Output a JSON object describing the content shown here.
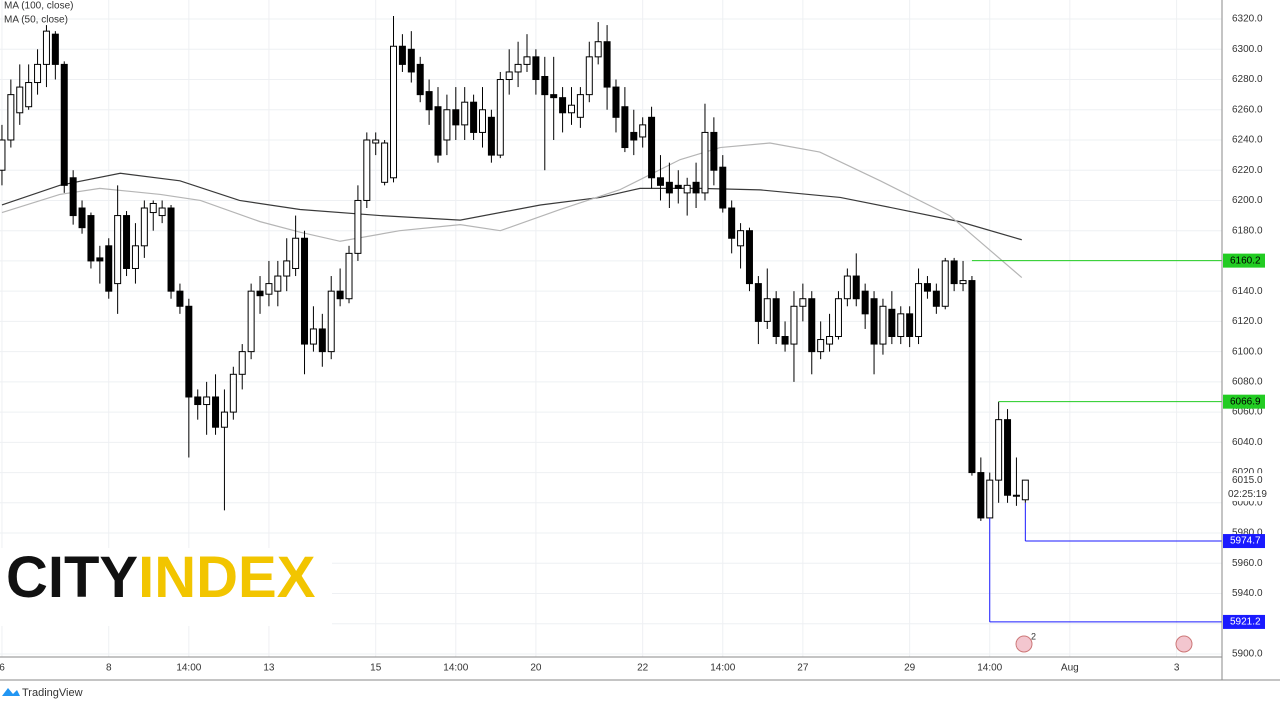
{
  "chart_data": {
    "type": "candlestick",
    "legend": [
      "MA (100, close)",
      "MA (50, close)"
    ],
    "xlim": [
      -0.22,
      137.1
    ],
    "ylim": [
      5898,
      6332.6
    ],
    "grid": true,
    "xticks": [
      {
        "value": 0,
        "label": "6"
      },
      {
        "value": 12,
        "label": "8"
      },
      {
        "value": 21,
        "label": "14:00"
      },
      {
        "value": 30,
        "label": "13"
      },
      {
        "value": 42,
        "label": "15"
      },
      {
        "value": 51,
        "label": "14:00"
      },
      {
        "value": 60,
        "label": "20"
      },
      {
        "value": 72,
        "label": "22"
      },
      {
        "value": 81,
        "label": "14:00"
      },
      {
        "value": 90,
        "label": "27"
      },
      {
        "value": 102,
        "label": "29"
      },
      {
        "value": 111,
        "label": "14:00"
      },
      {
        "value": 120,
        "label": "Aug"
      },
      {
        "value": 132,
        "label": "3"
      }
    ],
    "yticks": [
      {
        "value": 5900,
        "label": "5900.0"
      },
      {
        "value": 5920,
        "label": "5920.0"
      },
      {
        "value": 5940,
        "label": "5940.0"
      },
      {
        "value": 5960,
        "label": "5960.0"
      },
      {
        "value": 5980,
        "label": "5980.0"
      },
      {
        "value": 6000,
        "label": "6000.0"
      },
      {
        "value": 6020,
        "label": "6020.0"
      },
      {
        "value": 6040,
        "label": "6040.0"
      },
      {
        "value": 6060,
        "label": "6060.0"
      },
      {
        "value": 6080,
        "label": "6080.0"
      },
      {
        "value": 6100,
        "label": "6100.0"
      },
      {
        "value": 6120,
        "label": "6120.0"
      },
      {
        "value": 6140,
        "label": "6140.0"
      },
      {
        "value": 6160,
        "label": "6160.0"
      },
      {
        "value": 6180,
        "label": "6180.0"
      },
      {
        "value": 6200,
        "label": "6200.0"
      },
      {
        "value": 6220,
        "label": "6220.0"
      },
      {
        "value": 6240,
        "label": "6240.0"
      },
      {
        "value": 6260,
        "label": "6260.0"
      },
      {
        "value": 6280,
        "label": "6280.0"
      },
      {
        "value": 6300,
        "label": "6300.0"
      },
      {
        "value": 6320,
        "label": "6320.0"
      }
    ],
    "up_color": "#ffffff",
    "down_color": "#000000",
    "open": [
      6220,
      6240,
      6258,
      6262,
      6278,
      6290,
      6310,
      6290,
      6215,
      6195,
      6190,
      6162,
      6170,
      6145,
      6190,
      6155,
      6170,
      6192,
      6190,
      6195,
      6140,
      6130,
      6070,
      6065,
      6070,
      6050,
      6060,
      6085,
      6100,
      6140,
      6138,
      6140,
      6150,
      6155,
      6175,
      6105,
      6115,
      6100,
      6140,
      6135,
      6165,
      6200,
      6238,
      6212,
      6215,
      6302,
      6300,
      6290,
      6272,
      6262,
      6240,
      6260,
      6250,
      6265,
      6245,
      6255,
      6230,
      6280,
      6285,
      6290,
      6295,
      6282,
      6270,
      6268,
      6258,
      6255,
      6270,
      6295,
      6305,
      6275,
      6262,
      6245,
      6242,
      6255,
      6215,
      6212,
      6210,
      6205,
      6212,
      6205,
      6245,
      6222,
      6195,
      6170,
      6180,
      6145,
      6120,
      6135,
      6110,
      6105,
      6130,
      6135,
      6100,
      6105,
      6110,
      6135,
      6150,
      6140,
      6135,
      6105,
      6128,
      6110,
      6125,
      6110,
      6145,
      6140,
      6130,
      6160,
      6145,
      6147,
      6020,
      5990,
      6015,
      6055,
      6005,
      6002
    ],
    "high": [
      6250,
      6280,
      6290,
      6290,
      6300,
      6316,
      6312,
      6292,
      6220,
      6200,
      6192,
      6170,
      6175,
      6210,
      6193,
      6185,
      6200,
      6200,
      6200,
      6197,
      6145,
      6135,
      6075,
      6080,
      6085,
      6075,
      6090,
      6105,
      6145,
      6150,
      6160,
      6160,
      6175,
      6190,
      6180,
      6130,
      6125,
      6150,
      6155,
      6170,
      6210,
      6245,
      6245,
      6240,
      6322,
      6310,
      6312,
      6295,
      6280,
      6275,
      6270,
      6275,
      6275,
      6270,
      6275,
      6260,
      6285,
      6300,
      6305,
      6310,
      6300,
      6295,
      6295,
      6275,
      6275,
      6275,
      6305,
      6318,
      6316,
      6280,
      6275,
      6260,
      6255,
      6262,
      6230,
      6225,
      6220,
      6215,
      6225,
      6264,
      6255,
      6230,
      6200,
      6185,
      6182,
      6150,
      6155,
      6140,
      6120,
      6140,
      6145,
      6140,
      6120,
      6125,
      6140,
      6155,
      6165,
      6145,
      6140,
      6135,
      6140,
      6130,
      6130,
      6155,
      6150,
      6145,
      6162,
      6162,
      6160,
      6150,
      6030,
      6020,
      6066.9,
      6062,
      6030,
      6015
    ],
    "low": [
      6210,
      6235,
      6250,
      6260,
      6270,
      6275,
      6280,
      6205,
      6184,
      6178,
      6155,
      6145,
      6135,
      6125,
      6150,
      6145,
      6162,
      6180,
      6185,
      6135,
      6125,
      6030,
      6055,
      6045,
      6045,
      5995,
      6055,
      6075,
      6095,
      6125,
      6130,
      6130,
      6140,
      6150,
      6085,
      6100,
      6090,
      6095,
      6130,
      6132,
      6160,
      6195,
      6230,
      6210,
      6212,
      6285,
      6278,
      6265,
      6250,
      6225,
      6230,
      6240,
      6240,
      6240,
      6235,
      6225,
      6228,
      6270,
      6275,
      6285,
      6270,
      6220,
      6240,
      6245,
      6250,
      6248,
      6265,
      6290,
      6260,
      6245,
      6232,
      6230,
      6235,
      6208,
      6200,
      6195,
      6198,
      6190,
      6195,
      6200,
      6210,
      6192,
      6165,
      6155,
      6140,
      6105,
      6115,
      6105,
      6100,
      6080,
      6120,
      6085,
      6095,
      6100,
      6108,
      6130,
      6130,
      6115,
      6085,
      6098,
      6105,
      6105,
      6103,
      6105,
      6135,
      6125,
      6128,
      6140,
      6140,
      6018,
      5988,
      5990,
      6000,
      6000,
      5998,
      6000
    ],
    "close": [
      6240,
      6270,
      6275,
      6278,
      6290,
      6312,
      6290,
      6210,
      6190,
      6182,
      6160,
      6160,
      6140,
      6190,
      6155,
      6170,
      6195,
      6198,
      6195,
      6140,
      6130,
      6070,
      6065,
      6070,
      6050,
      6060,
      6085,
      6100,
      6140,
      6137,
      6145,
      6150,
      6160,
      6175,
      6105,
      6115,
      6100,
      6140,
      6135,
      6165,
      6200,
      6240,
      6240,
      6238,
      6302,
      6290,
      6285,
      6270,
      6260,
      6230,
      6260,
      6250,
      6265,
      6245,
      6260,
      6230,
      6280,
      6285,
      6290,
      6295,
      6280,
      6270,
      6268,
      6258,
      6263,
      6270,
      6295,
      6305,
      6275,
      6255,
      6235,
      6240,
      6250,
      6215,
      6210,
      6205,
      6208,
      6210,
      6205,
      6245,
      6220,
      6195,
      6175,
      6180,
      6145,
      6120,
      6135,
      6110,
      6105,
      6130,
      6135,
      6100,
      6108,
      6110,
      6135,
      6150,
      6135,
      6125,
      6105,
      6130,
      6110,
      6125,
      6110,
      6145,
      6140,
      6130,
      6160,
      6145,
      6147,
      6020,
      5990,
      6015,
      6055,
      6005,
      6005,
      6015
    ],
    "series": [
      {
        "name": "MA (100, close)",
        "color": "#3a3a3a",
        "x": [
          0,
          6.5,
          13.3,
          20,
          26.7,
          33.5,
          42.5,
          51.5,
          60.5,
          67.2,
          71.7,
          78.4,
          85.2,
          94.2,
          101,
          107.6,
          114.6
        ],
        "values": [
          6197,
          6210,
          6218,
          6213,
          6200,
          6194,
          6190,
          6187,
          6197,
          6202,
          6208,
          6208,
          6207,
          6202,
          6194,
          6186,
          6174
        ]
      },
      {
        "name": "MA (50, close)",
        "color": "#b5b5b5",
        "x": [
          0,
          6.5,
          11,
          17.8,
          22.3,
          29,
          33.5,
          38,
          44.7,
          51.5,
          56,
          62.7,
          69.4,
          76.2,
          80.7,
          86.3,
          91.9,
          98.7,
          106.5,
          114.6
        ],
        "values": [
          6192,
          6204,
          6208,
          6204,
          6200,
          6186,
          6179,
          6173,
          6180,
          6184,
          6180,
          6194,
          6207,
          6227,
          6235,
          6238,
          6232,
          6213,
          6190,
          6149
        ]
      }
    ],
    "levels": [
      {
        "value": 6160.2,
        "label": "6160.2",
        "color": "#22cc22",
        "from": 109
      },
      {
        "value": 6066.9,
        "label": "6066.9",
        "color": "#22cc22",
        "from": 112
      },
      {
        "value": 5974.7,
        "label": "5974.7",
        "color": "#1a1aff",
        "from": 115
      },
      {
        "value": 5921.2,
        "label": "5921.2",
        "color": "#1a1aff",
        "from": 111
      }
    ],
    "last_price": {
      "value": 6015,
      "label": "6015.0"
    },
    "countdown": "02:25:19",
    "event_badge": "2",
    "watermark": {
      "part1": "CITY",
      "part2": "INDEX"
    },
    "source": "TradingView"
  }
}
